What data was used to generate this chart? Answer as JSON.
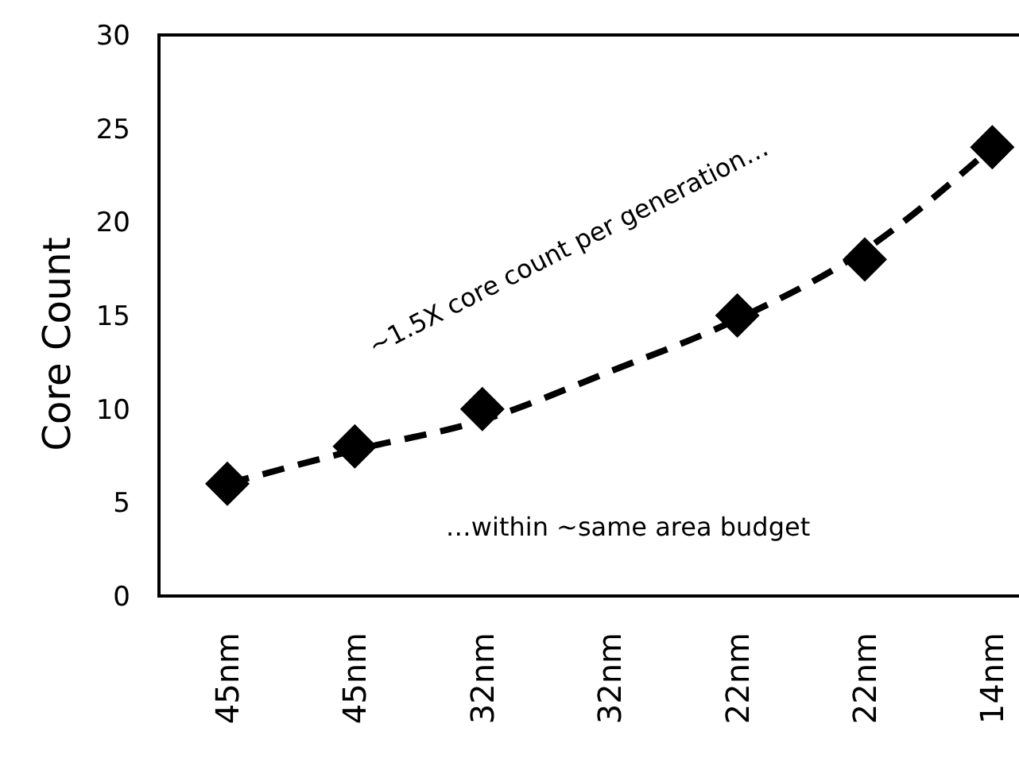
{
  "chart_data": {
    "type": "scatter",
    "ylabel": "Core Count",
    "categories": [
      "45nm",
      "45nm",
      "32nm",
      "32nm",
      "22nm",
      "22nm",
      "14nm"
    ],
    "series": [
      {
        "type": "line",
        "color": "#000000",
        "line_style": "dashed",
        "marker": "none",
        "values": [
          6,
          7.8,
          9.4,
          12,
          14.8,
          18.5,
          24
        ]
      },
      {
        "color": "#000000",
        "marker": "diamond",
        "values": [
          6,
          8,
          10,
          null,
          15,
          18,
          24
        ]
      }
    ],
    "ylim": [
      0,
      30
    ],
    "yticks": [
      0,
      5,
      10,
      15,
      20,
      25,
      30
    ],
    "grid": false,
    "annotations": [
      "~1.5X core count per generation…",
      "…within ~same area budget"
    ]
  }
}
